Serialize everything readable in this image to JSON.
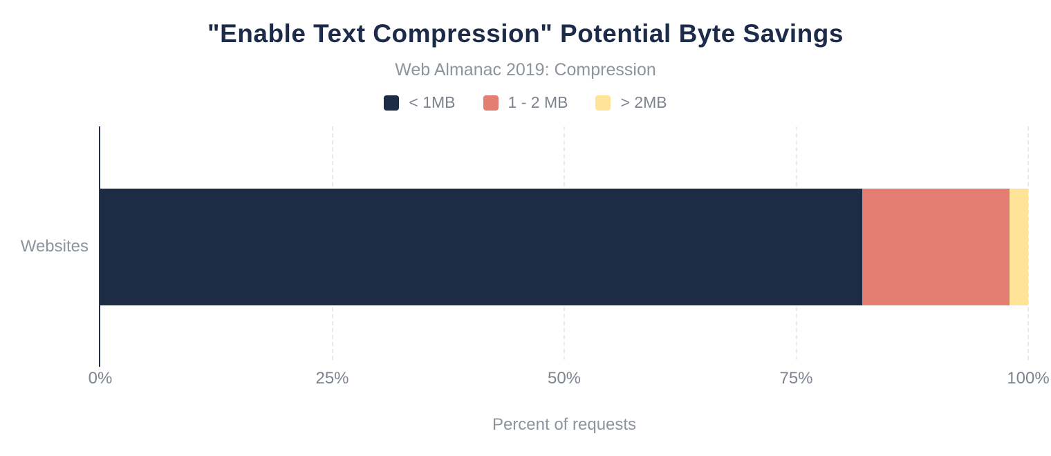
{
  "chart": {
    "title": "\"Enable Text Compression\" Potential Byte Savings",
    "subtitle": "Web Almanac 2019: Compression",
    "category_label": "Websites",
    "xaxis_label": "Percent of requests"
  },
  "chart_data": {
    "type": "bar",
    "orientation": "horizontal",
    "stacked": true,
    "title": "\"Enable Text Compression\" Potential Byte Savings",
    "subtitle": "Web Almanac 2019: Compression",
    "xlabel": "Percent of requests",
    "ylabel": "",
    "categories": [
      "Websites"
    ],
    "series": [
      {
        "name": "< 1MB",
        "values": [
          82.1
        ],
        "color": "#1d2b45"
      },
      {
        "name": "1 - 2 MB",
        "values": [
          15.9
        ],
        "color": "#e57e72"
      },
      {
        "name": "> 2MB",
        "values": [
          2.0
        ],
        "color": "#ffe396"
      }
    ],
    "xlim": [
      0,
      100
    ],
    "xticks": [
      "0%",
      "25%",
      "50%",
      "75%",
      "100%"
    ],
    "grid": "vertical-dashed",
    "legend_position": "top"
  },
  "colors": {
    "background": "#ffffff",
    "title_text": "#1c2b4a",
    "subtitle_text": "#8e949c",
    "tick_text": "#7d848e",
    "axis_line": "#222f49",
    "gridline": "#e8eaee"
  }
}
